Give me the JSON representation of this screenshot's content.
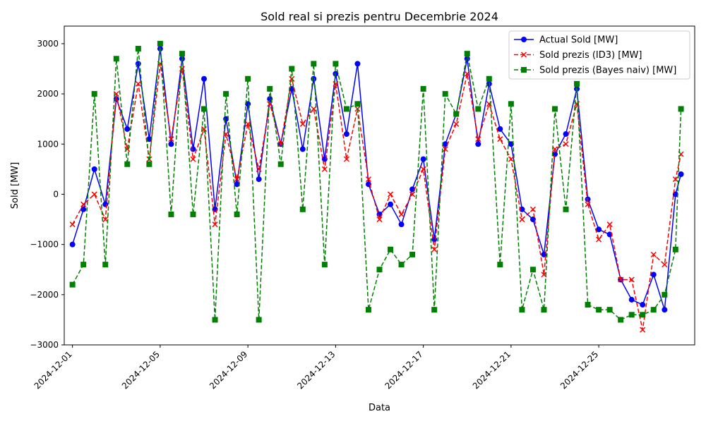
{
  "chart_data": {
    "type": "line",
    "title": "Sold real si prezis pentru Decembrie 2024",
    "xlabel": "Data",
    "ylabel": "Sold [MW]",
    "xlim": [
      "2024-11-30T15:00",
      "2024-12-29T09:00"
    ],
    "ylim": [
      -3000,
      3350
    ],
    "x_tick_labels": [
      "2024-12-01",
      "2024-12-05",
      "2024-12-09",
      "2024-12-13",
      "2024-12-17",
      "2024-12-21",
      "2024-12-25"
    ],
    "y_ticks": [
      -3000,
      -2000,
      -1000,
      0,
      1000,
      2000,
      3000
    ],
    "grid": false,
    "legend_position": "top-right",
    "series": [
      {
        "name": "Actual Sold [MW]",
        "color": "#0000ff",
        "marker": "circle",
        "linestyle": "solid",
        "x": [
          "2024-12-01T00:00",
          "2024-12-01T12:00",
          "2024-12-02T00:00",
          "2024-12-02T12:00",
          "2024-12-03T00:00",
          "2024-12-03T12:00",
          "2024-12-04T00:00",
          "2024-12-04T12:00",
          "2024-12-05T00:00",
          "2024-12-05T12:00",
          "2024-12-06T00:00",
          "2024-12-06T12:00",
          "2024-12-07T00:00",
          "2024-12-07T12:00",
          "2024-12-08T00:00",
          "2024-12-08T12:00",
          "2024-12-09T00:00",
          "2024-12-09T12:00",
          "2024-12-10T00:00",
          "2024-12-10T12:00",
          "2024-12-11T00:00",
          "2024-12-11T12:00",
          "2024-12-12T00:00",
          "2024-12-12T12:00",
          "2024-12-13T00:00",
          "2024-12-13T12:00",
          "2024-12-14T00:00",
          "2024-12-14T12:00",
          "2024-12-15T00:00",
          "2024-12-15T12:00",
          "2024-12-16T00:00",
          "2024-12-16T12:00",
          "2024-12-17T00:00",
          "2024-12-17T12:00",
          "2024-12-18T00:00",
          "2024-12-18T12:00",
          "2024-12-19T00:00",
          "2024-12-19T12:00",
          "2024-12-20T00:00",
          "2024-12-20T12:00",
          "2024-12-21T00:00",
          "2024-12-21T12:00",
          "2024-12-22T00:00",
          "2024-12-22T12:00",
          "2024-12-23T00:00",
          "2024-12-23T12:00",
          "2024-12-24T00:00",
          "2024-12-24T12:00",
          "2024-12-25T00:00",
          "2024-12-25T12:00",
          "2024-12-26T00:00",
          "2024-12-26T12:00",
          "2024-12-27T00:00",
          "2024-12-27T12:00",
          "2024-12-28T00:00",
          "2024-12-28T12:00",
          "2024-12-28T18:00"
        ],
        "y": [
          -1000,
          -300,
          500,
          -200,
          1900,
          1300,
          2600,
          1100,
          2900,
          1000,
          2700,
          900,
          2300,
          -300,
          1500,
          200,
          1800,
          300,
          1900,
          1000,
          2100,
          900,
          2300,
          700,
          2400,
          1200,
          2600,
          200,
          -400,
          -200,
          -600,
          100,
          700,
          -900,
          1000,
          1600,
          2700,
          1000,
          2200,
          1300,
          1000,
          -300,
          -500,
          -1200,
          800,
          1200,
          2100,
          -100,
          -700,
          -800,
          -1700,
          -2100,
          -2200,
          -1600,
          -2300,
          0,
          400
        ]
      },
      {
        "name": "Sold prezis (ID3) [MW]",
        "color": "#ff0000",
        "marker": "x",
        "linestyle": "dashed",
        "x": [
          "2024-12-01T00:00",
          "2024-12-01T12:00",
          "2024-12-02T00:00",
          "2024-12-02T12:00",
          "2024-12-03T00:00",
          "2024-12-03T12:00",
          "2024-12-04T00:00",
          "2024-12-04T12:00",
          "2024-12-05T00:00",
          "2024-12-05T12:00",
          "2024-12-06T00:00",
          "2024-12-06T12:00",
          "2024-12-07T00:00",
          "2024-12-07T12:00",
          "2024-12-08T00:00",
          "2024-12-08T12:00",
          "2024-12-09T00:00",
          "2024-12-09T12:00",
          "2024-12-10T00:00",
          "2024-12-10T12:00",
          "2024-12-11T00:00",
          "2024-12-11T12:00",
          "2024-12-12T00:00",
          "2024-12-12T12:00",
          "2024-12-13T00:00",
          "2024-12-13T12:00",
          "2024-12-14T00:00",
          "2024-12-14T12:00",
          "2024-12-15T00:00",
          "2024-12-15T12:00",
          "2024-12-16T00:00",
          "2024-12-16T12:00",
          "2024-12-17T00:00",
          "2024-12-17T12:00",
          "2024-12-18T00:00",
          "2024-12-18T12:00",
          "2024-12-19T00:00",
          "2024-12-19T12:00",
          "2024-12-20T00:00",
          "2024-12-20T12:00",
          "2024-12-21T00:00",
          "2024-12-21T12:00",
          "2024-12-22T00:00",
          "2024-12-22T12:00",
          "2024-12-23T00:00",
          "2024-12-23T12:00",
          "2024-12-24T00:00",
          "2024-12-24T12:00",
          "2024-12-25T00:00",
          "2024-12-25T12:00",
          "2024-12-26T00:00",
          "2024-12-26T12:00",
          "2024-12-27T00:00",
          "2024-12-27T12:00",
          "2024-12-28T00:00",
          "2024-12-28T12:00",
          "2024-12-28T18:00"
        ],
        "y": [
          -600,
          -200,
          0,
          -500,
          2000,
          900,
          2200,
          700,
          2600,
          1100,
          2500,
          700,
          1300,
          -600,
          1200,
          300,
          1400,
          500,
          1800,
          1000,
          2300,
          1400,
          1700,
          500,
          2200,
          700,
          1700,
          300,
          -500,
          0,
          -400,
          0,
          500,
          -1100,
          900,
          1400,
          2400,
          1100,
          1800,
          1100,
          700,
          -500,
          -300,
          -1600,
          900,
          1000,
          1800,
          -200,
          -900,
          -600,
          -1700,
          -1700,
          -2700,
          -1200,
          -1400,
          300,
          800
        ]
      },
      {
        "name": "Sold prezis (Bayes naiv) [MW]",
        "color": "#008000",
        "marker": "square",
        "linestyle": "dashed",
        "x": [
          "2024-12-01T00:00",
          "2024-12-01T12:00",
          "2024-12-02T00:00",
          "2024-12-02T12:00",
          "2024-12-03T00:00",
          "2024-12-03T12:00",
          "2024-12-04T00:00",
          "2024-12-04T12:00",
          "2024-12-05T00:00",
          "2024-12-05T12:00",
          "2024-12-06T00:00",
          "2024-12-06T12:00",
          "2024-12-07T00:00",
          "2024-12-07T12:00",
          "2024-12-08T00:00",
          "2024-12-08T12:00",
          "2024-12-09T00:00",
          "2024-12-09T12:00",
          "2024-12-10T00:00",
          "2024-12-10T12:00",
          "2024-12-11T00:00",
          "2024-12-11T12:00",
          "2024-12-12T00:00",
          "2024-12-12T12:00",
          "2024-12-13T00:00",
          "2024-12-13T12:00",
          "2024-12-14T00:00",
          "2024-12-14T12:00",
          "2024-12-15T00:00",
          "2024-12-15T12:00",
          "2024-12-16T00:00",
          "2024-12-16T12:00",
          "2024-12-17T00:00",
          "2024-12-17T12:00",
          "2024-12-18T00:00",
          "2024-12-18T12:00",
          "2024-12-19T00:00",
          "2024-12-19T12:00",
          "2024-12-20T00:00",
          "2024-12-20T12:00",
          "2024-12-21T00:00",
          "2024-12-21T12:00",
          "2024-12-22T00:00",
          "2024-12-22T12:00",
          "2024-12-23T00:00",
          "2024-12-23T12:00",
          "2024-12-24T00:00",
          "2024-12-24T12:00",
          "2024-12-25T00:00",
          "2024-12-25T12:00",
          "2024-12-26T00:00",
          "2024-12-26T12:00",
          "2024-12-27T00:00",
          "2024-12-27T12:00",
          "2024-12-28T00:00",
          "2024-12-28T12:00",
          "2024-12-28T18:00"
        ],
        "y": [
          -1800,
          -1400,
          2000,
          -1400,
          2700,
          600,
          2900,
          600,
          3000,
          -400,
          2800,
          -400,
          1700,
          -2500,
          2000,
          -400,
          2300,
          -2500,
          2100,
          600,
          2500,
          -300,
          2600,
          -1400,
          2600,
          1700,
          1800,
          -2300,
          -1500,
          -1100,
          -1400,
          -1200,
          2100,
          -2300,
          2000,
          1600,
          2800,
          1700,
          2300,
          -1400,
          1800,
          -2300,
          -1500,
          -2300,
          1700,
          -300,
          2200,
          -2200,
          -2300,
          -2300,
          -2500,
          -2400,
          -2400,
          -2300,
          -2000,
          -1100,
          1700
        ]
      }
    ]
  }
}
